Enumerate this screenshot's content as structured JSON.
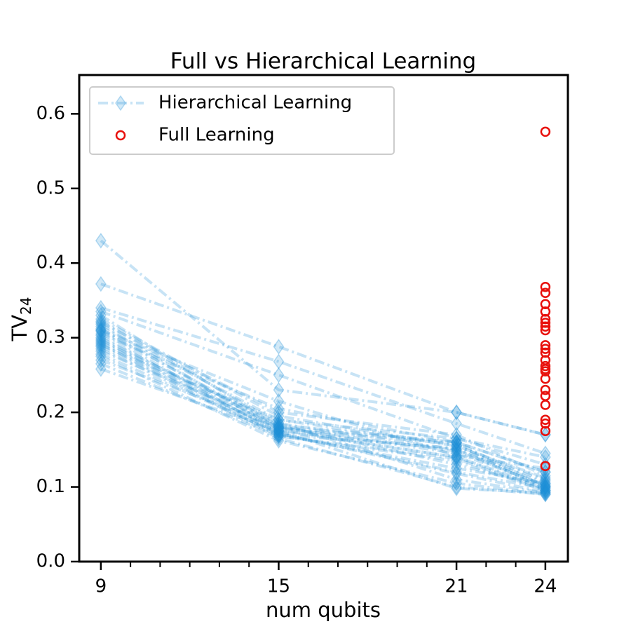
{
  "chart_data": {
    "type": "line_scatter",
    "title": "Full vs Hierarchical Learning",
    "xlabel": "num qubits",
    "ylabel": {
      "text": "TV",
      "sub": "24"
    },
    "xlim": [
      8.27,
      24.76
    ],
    "xticks": [
      9,
      15,
      21,
      24
    ],
    "xminorticks": [
      10,
      11,
      12,
      13,
      14,
      16,
      17,
      18,
      19,
      20,
      22,
      23
    ],
    "ylim": [
      0,
      0.652
    ],
    "yticks": [
      {
        "value": 0,
        "label": "0.0"
      },
      0.1,
      0.2,
      0.3,
      0.4,
      0.5,
      0.6
    ],
    "legend": "upper left",
    "series": [
      {
        "name": "Hierarchical Learning",
        "type": "line",
        "color": "#1f8fd6",
        "x": [
          9,
          15,
          21,
          24
        ],
        "values": [
          [
            0.43,
            0.23,
            0.2,
            0.17
          ],
          [
            0.372,
            0.288,
            0.2,
            0.17
          ],
          [
            0.34,
            0.268,
            0.185,
            0.145
          ],
          [
            0.335,
            0.25,
            0.165,
            0.13
          ],
          [
            0.33,
            0.18,
            0.16,
            0.12
          ],
          [
            0.325,
            0.195,
            0.155,
            0.11
          ],
          [
            0.322,
            0.185,
            0.15,
            0.105
          ],
          [
            0.318,
            0.175,
            0.14,
            0.1
          ],
          [
            0.315,
            0.19,
            0.165,
            0.14
          ],
          [
            0.312,
            0.178,
            0.158,
            0.095
          ],
          [
            0.31,
            0.182,
            0.13,
            0.1
          ],
          [
            0.308,
            0.17,
            0.152,
            0.108
          ],
          [
            0.305,
            0.205,
            0.16,
            0.12
          ],
          [
            0.303,
            0.172,
            0.12,
            0.098
          ],
          [
            0.3,
            0.18,
            0.145,
            0.103
          ],
          [
            0.298,
            0.168,
            0.135,
            0.095
          ],
          [
            0.296,
            0.186,
            0.11,
            0.092
          ],
          [
            0.294,
            0.175,
            0.15,
            0.1
          ],
          [
            0.292,
            0.165,
            0.1,
            0.09
          ],
          [
            0.29,
            0.19,
            0.155,
            0.112
          ],
          [
            0.288,
            0.177,
            0.14,
            0.097
          ],
          [
            0.285,
            0.17,
            0.125,
            0.105
          ],
          [
            0.282,
            0.183,
            0.16,
            0.1
          ],
          [
            0.278,
            0.172,
            0.118,
            0.093
          ],
          [
            0.275,
            0.162,
            0.105,
            0.09
          ],
          [
            0.27,
            0.18,
            0.148,
            0.102
          ],
          [
            0.265,
            0.168,
            0.138,
            0.095
          ],
          [
            0.258,
            0.175,
            0.098,
            0.092
          ],
          [
            0.32,
            0.2,
            0.17,
            0.115
          ],
          [
            0.31,
            0.215,
            0.142,
            0.125
          ]
        ]
      },
      {
        "name": "Full Learning",
        "type": "scatter",
        "color": "#e8100c",
        "x": [
          24,
          24,
          24,
          24,
          24,
          24,
          24,
          24,
          24,
          24,
          24,
          24,
          24,
          24,
          24,
          24,
          24,
          24,
          24,
          24,
          24,
          24,
          24,
          24
        ],
        "values": [
          0.576,
          0.368,
          0.36,
          0.345,
          0.335,
          0.325,
          0.32,
          0.315,
          0.31,
          0.29,
          0.285,
          0.28,
          0.27,
          0.262,
          0.258,
          0.255,
          0.245,
          0.23,
          0.222,
          0.21,
          0.19,
          0.185,
          0.175,
          0.128
        ]
      }
    ]
  }
}
